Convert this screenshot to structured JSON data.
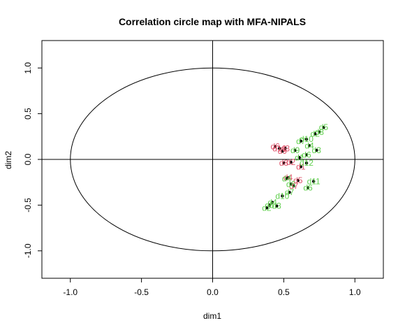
{
  "chart_data": {
    "type": "scatter",
    "title": "Correlation circle map with MFA-NIPALS",
    "xlabel": "dim1",
    "ylabel": "dim2",
    "xlim": [
      -1.2,
      1.2
    ],
    "ylim": [
      -1.3,
      1.3
    ],
    "x_ticks": [
      "-1.0",
      "-0.5",
      "0.0",
      "0.5",
      "1.0"
    ],
    "y_ticks": [
      "-1.0",
      "-0.5",
      "0.0",
      "0.5",
      "1.0"
    ],
    "x_tick_values": [
      -1.0,
      -0.5,
      0.0,
      0.5,
      1.0
    ],
    "y_tick_values": [
      -1.0,
      -0.5,
      0.0,
      0.5,
      1.0
    ],
    "unit_circle": true,
    "reference_lines": {
      "x": 0,
      "y": 0
    },
    "grid": false,
    "legend": "none",
    "colors": {
      "group1": "#DF536B",
      "group2": "#61D04F",
      "point": "#000000"
    },
    "series": [
      {
        "color": "#DF536B",
        "points": [
          {
            "x": 0.44,
            "y": 0.14,
            "label": "d6"
          },
          {
            "x": 0.47,
            "y": 0.12,
            "label": "d10"
          },
          {
            "x": 0.51,
            "y": 0.12,
            "label": "d3"
          },
          {
            "x": 0.49,
            "y": 0.09,
            "label": "d9"
          },
          {
            "x": 0.5,
            "y": -0.04,
            "label": "d8"
          },
          {
            "x": 0.55,
            "y": -0.03,
            "label": "d2"
          },
          {
            "x": 0.62,
            "y": -0.08,
            "label": "d1"
          },
          {
            "x": 0.53,
            "y": -0.2,
            "label": "d4"
          },
          {
            "x": 0.6,
            "y": -0.23,
            "label": "d5"
          },
          {
            "x": 0.57,
            "y": -0.29,
            "label": "d7"
          }
        ]
      },
      {
        "color": "#61D04F",
        "points": [
          {
            "x": 0.78,
            "y": 0.35,
            "label": "d5"
          },
          {
            "x": 0.75,
            "y": 0.3,
            "label": "d8"
          },
          {
            "x": 0.72,
            "y": 0.28,
            "label": "d2"
          },
          {
            "x": 0.66,
            "y": 0.22,
            "label": "d10"
          },
          {
            "x": 0.62,
            "y": 0.2,
            "label": "d7"
          },
          {
            "x": 0.68,
            "y": 0.15,
            "label": "d4"
          },
          {
            "x": 0.73,
            "y": 0.1,
            "label": "d3"
          },
          {
            "x": 0.58,
            "y": 0.1,
            "label": "d9"
          },
          {
            "x": 0.66,
            "y": 0.05,
            "label": "d6"
          },
          {
            "x": 0.61,
            "y": 0.02,
            "label": "d1"
          },
          {
            "x": 0.66,
            "y": -0.04,
            "label": "d12"
          },
          {
            "x": 0.52,
            "y": -0.21,
            "label": "d4"
          },
          {
            "x": 0.71,
            "y": -0.24,
            "label": "d11"
          },
          {
            "x": 0.55,
            "y": -0.27,
            "label": "d6"
          },
          {
            "x": 0.67,
            "y": -0.31,
            "label": "d6"
          },
          {
            "x": 0.54,
            "y": -0.36,
            "label": "d7"
          },
          {
            "x": 0.49,
            "y": -0.4,
            "label": "d10"
          },
          {
            "x": 0.42,
            "y": -0.47,
            "label": "d4"
          },
          {
            "x": 0.4,
            "y": -0.5,
            "label": "d5"
          },
          {
            "x": 0.45,
            "y": -0.51,
            "label": "d3"
          },
          {
            "x": 0.38,
            "y": -0.53,
            "label": "d2"
          }
        ]
      }
    ]
  }
}
